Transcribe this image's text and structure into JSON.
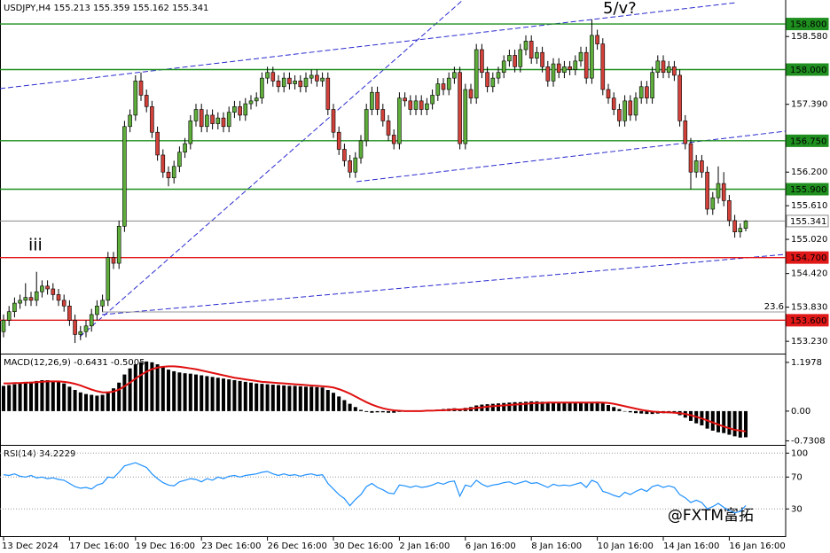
{
  "chart_data": [
    {
      "type": "candlestick",
      "title": "USDJPY,H4  155.213 155.359 155.162 155.341",
      "categories": [
        "13 Dec 2024",
        null,
        null,
        null,
        null,
        null,
        null,
        null,
        null,
        null,
        null,
        null,
        "17 Dec 16:00",
        null,
        null,
        null,
        null,
        null,
        null,
        null,
        null,
        null,
        null,
        null,
        "19 Dec 16:00",
        null,
        null,
        null,
        null,
        null,
        null,
        null,
        null,
        null,
        null,
        null,
        "23 Dec 16:00",
        null,
        null,
        null,
        null,
        null,
        null,
        null,
        null,
        null,
        null,
        null,
        "26 Dec 16:00",
        null,
        null,
        null,
        null,
        null,
        null,
        null,
        null,
        null,
        null,
        null,
        "30 Dec 16:00",
        null,
        null,
        null,
        null,
        null,
        null,
        null,
        null,
        null,
        null,
        null,
        "2 Jan 16:00",
        null,
        null,
        null,
        null,
        null,
        null,
        null,
        null,
        null,
        null,
        null,
        "6 Jan 16:00",
        null,
        null,
        null,
        null,
        null,
        null,
        null,
        null,
        null,
        null,
        null,
        "8 Jan 16:00",
        null,
        null,
        null,
        null,
        null,
        null,
        null,
        null,
        null,
        null,
        null,
        "10 Jan 16:00",
        null,
        null,
        null,
        null,
        null,
        null,
        null,
        null,
        null,
        null,
        null,
        "14 Jan 16:00",
        null,
        null,
        null,
        null,
        null,
        null,
        null,
        null,
        null,
        null,
        null,
        "16 Jan 16:00",
        null,
        null,
        null
      ],
      "open": [
        153.4,
        153.6,
        153.75,
        153.9,
        153.95,
        154.0,
        153.95,
        154.1,
        154.2,
        154.15,
        154.05,
        153.95,
        153.85,
        153.6,
        153.35,
        153.4,
        153.5,
        153.7,
        153.85,
        153.95,
        154.7,
        154.6,
        155.25,
        157.0,
        157.2,
        157.8,
        157.55,
        157.35,
        156.9,
        156.5,
        156.2,
        156.1,
        156.3,
        156.55,
        156.7,
        157.1,
        157.3,
        157.0,
        157.2,
        157.05,
        157.15,
        157.0,
        157.25,
        157.35,
        157.2,
        157.4,
        157.45,
        157.5,
        157.85,
        157.95,
        157.8,
        157.7,
        157.85,
        157.75,
        157.8,
        157.7,
        157.85,
        157.9,
        157.8,
        157.85,
        157.3,
        156.9,
        156.6,
        156.4,
        156.2,
        156.45,
        156.75,
        157.3,
        157.6,
        157.3,
        157.1,
        156.85,
        156.7,
        157.5,
        157.45,
        157.3,
        157.45,
        157.3,
        157.4,
        157.55,
        157.75,
        157.65,
        157.85,
        157.95,
        156.7,
        157.65,
        157.5,
        158.35,
        157.95,
        157.7,
        157.85,
        157.95,
        158.15,
        158.25,
        158.05,
        158.35,
        158.5,
        158.2,
        158.3,
        158.05,
        157.8,
        158.1,
        157.95,
        158.05,
        158.0,
        158.15,
        158.3,
        157.85,
        158.6,
        158.45,
        157.65,
        157.5,
        157.3,
        157.1,
        157.45,
        157.2,
        157.5,
        157.7,
        157.5,
        157.95,
        158.15,
        157.95,
        158.05,
        157.9,
        157.1,
        156.7,
        156.2,
        156.4,
        156.2,
        155.55,
        155.75,
        156.0,
        155.7,
        155.35,
        155.15,
        155.213
      ],
      "high": [
        153.7,
        153.85,
        154.0,
        154.05,
        154.25,
        154.1,
        154.45,
        154.3,
        154.3,
        154.25,
        154.15,
        154.05,
        153.95,
        153.7,
        153.5,
        153.6,
        153.8,
        153.95,
        154.05,
        154.8,
        154.8,
        155.35,
        157.1,
        157.3,
        157.9,
        157.95,
        157.65,
        157.45,
        157.0,
        156.6,
        156.3,
        156.4,
        156.65,
        156.8,
        157.2,
        157.4,
        157.4,
        157.3,
        157.3,
        157.25,
        157.25,
        157.35,
        157.45,
        157.45,
        157.5,
        157.55,
        157.6,
        157.95,
        158.05,
        158.05,
        157.9,
        157.95,
        157.95,
        157.9,
        157.9,
        157.95,
        158.0,
        158.0,
        157.95,
        157.95,
        157.4,
        157.0,
        156.7,
        156.5,
        156.55,
        156.85,
        157.4,
        157.7,
        157.7,
        157.4,
        157.2,
        156.95,
        157.6,
        157.6,
        157.55,
        157.55,
        157.55,
        157.5,
        157.65,
        157.85,
        157.85,
        157.95,
        158.05,
        158.05,
        157.75,
        157.75,
        158.45,
        158.45,
        158.05,
        157.95,
        158.05,
        158.25,
        158.35,
        158.35,
        158.45,
        158.6,
        158.6,
        158.4,
        158.4,
        158.15,
        158.2,
        158.2,
        158.15,
        158.15,
        158.25,
        158.4,
        158.4,
        158.88,
        158.7,
        158.55,
        157.75,
        157.6,
        157.4,
        157.55,
        157.55,
        157.6,
        157.8,
        157.8,
        158.05,
        158.25,
        158.25,
        158.15,
        158.15,
        158.0,
        157.2,
        156.8,
        156.5,
        156.5,
        156.3,
        155.85,
        156.3,
        156.2,
        155.8,
        155.45,
        155.3,
        155.359
      ],
      "low": [
        153.3,
        153.5,
        153.65,
        153.8,
        153.85,
        153.85,
        153.85,
        154.0,
        154.05,
        153.95,
        153.85,
        153.75,
        153.5,
        153.2,
        153.25,
        153.3,
        153.4,
        153.6,
        153.75,
        153.85,
        154.5,
        154.5,
        155.15,
        156.9,
        157.1,
        157.45,
        157.25,
        156.8,
        156.4,
        156.1,
        155.95,
        156.0,
        156.2,
        156.45,
        156.6,
        157.0,
        156.9,
        156.9,
        156.95,
        156.95,
        156.9,
        156.9,
        157.15,
        157.1,
        157.1,
        157.3,
        157.35,
        157.4,
        157.75,
        157.7,
        157.6,
        157.6,
        157.65,
        157.65,
        157.6,
        157.6,
        157.75,
        157.7,
        157.7,
        157.2,
        156.8,
        156.5,
        156.3,
        156.1,
        156.1,
        156.35,
        156.65,
        157.2,
        157.2,
        157.0,
        156.75,
        156.6,
        156.6,
        157.35,
        157.2,
        157.2,
        157.2,
        157.2,
        157.3,
        157.45,
        157.55,
        157.55,
        157.75,
        156.6,
        156.6,
        157.4,
        157.4,
        157.85,
        157.6,
        157.6,
        157.75,
        157.85,
        158.05,
        157.95,
        157.95,
        158.25,
        158.1,
        158.1,
        157.95,
        157.7,
        157.7,
        157.85,
        157.85,
        157.9,
        157.9,
        158.05,
        157.75,
        157.75,
        158.35,
        157.55,
        157.4,
        157.2,
        157.0,
        157.0,
        157.1,
        157.1,
        157.4,
        157.4,
        157.4,
        157.85,
        157.85,
        157.85,
        157.8,
        157.0,
        156.6,
        155.9,
        156.1,
        156.1,
        155.45,
        155.45,
        155.65,
        155.6,
        155.25,
        155.05,
        155.05,
        155.162
      ],
      "close": [
        153.6,
        153.75,
        153.9,
        153.95,
        154.0,
        153.95,
        154.1,
        154.2,
        154.15,
        154.05,
        153.95,
        153.85,
        153.6,
        153.35,
        153.4,
        153.5,
        153.7,
        153.85,
        153.95,
        154.7,
        154.6,
        155.25,
        157.0,
        157.2,
        157.8,
        157.55,
        157.35,
        156.9,
        156.5,
        156.2,
        156.1,
        156.3,
        156.55,
        156.7,
        157.1,
        157.3,
        157.0,
        157.2,
        157.05,
        157.15,
        157.0,
        157.25,
        157.35,
        157.2,
        157.4,
        157.45,
        157.5,
        157.85,
        157.95,
        157.8,
        157.7,
        157.85,
        157.75,
        157.8,
        157.7,
        157.85,
        157.9,
        157.8,
        157.85,
        157.3,
        156.9,
        156.6,
        156.4,
        156.2,
        156.45,
        156.75,
        157.3,
        157.6,
        157.3,
        157.1,
        156.85,
        156.7,
        157.5,
        157.45,
        157.3,
        157.45,
        157.3,
        157.4,
        157.55,
        157.75,
        157.65,
        157.85,
        157.95,
        156.7,
        157.65,
        157.5,
        158.35,
        157.95,
        157.7,
        157.85,
        157.95,
        158.15,
        158.25,
        158.05,
        158.35,
        158.5,
        158.2,
        158.3,
        158.05,
        157.8,
        158.1,
        157.95,
        158.05,
        158.0,
        158.15,
        158.3,
        157.85,
        158.6,
        158.45,
        157.65,
        157.5,
        157.3,
        157.1,
        157.45,
        157.2,
        157.5,
        157.7,
        157.5,
        157.95,
        158.15,
        157.95,
        158.05,
        157.9,
        157.1,
        156.7,
        156.2,
        156.4,
        156.2,
        155.55,
        155.75,
        156.0,
        155.7,
        155.35,
        155.15,
        155.213,
        155.341
      ],
      "up_color": "#5fae3c",
      "down_color": "#d2413a",
      "ylim": [
        153.03,
        159.19
      ],
      "yticks": [
        {
          "value": 158.58,
          "label": "158.580"
        },
        {
          "value": 157.39,
          "label": "157.390"
        },
        {
          "value": 156.2,
          "label": "156.200"
        },
        {
          "value": 155.61,
          "label": "155.610"
        },
        {
          "value": 155.02,
          "label": "155.020"
        },
        {
          "value": 154.42,
          "label": "154.420"
        },
        {
          "value": 153.83,
          "label": "153.830"
        },
        {
          "value": 153.23,
          "label": "153.230"
        }
      ],
      "levels": [
        {
          "value": 158.8,
          "label": "158.800",
          "color": "#1f8f1f",
          "label_bg": "#1f8f1f",
          "label_fg": "#ffffff"
        },
        {
          "value": 158.0,
          "label": "158.000",
          "color": "#1f8f1f",
          "label_bg": "#1f8f1f",
          "label_fg": "#ffffff"
        },
        {
          "value": 156.75,
          "label": "156.750",
          "color": "#1f8f1f",
          "label_bg": "#1f8f1f",
          "label_fg": "#ffffff"
        },
        {
          "value": 155.9,
          "label": "155.900",
          "color": "#1f8f1f",
          "label_bg": "#1f8f1f",
          "label_fg": "#ffffff"
        },
        {
          "value": 155.341,
          "label": "155.341",
          "color": "#8a8a8a",
          "label_bg": "#ffffff",
          "label_fg": "#000000"
        },
        {
          "value": 154.7,
          "label": "154.700",
          "color": "#e01818",
          "label_bg": "#e01818",
          "label_fg": "#ffffff"
        },
        {
          "value": 153.6,
          "label": "153.600",
          "color": "#e01818",
          "label_bg": "#e01818",
          "label_fg": "#ffffff"
        }
      ],
      "annotations": [
        "5/v?",
        "iii",
        "23.6"
      ]
    },
    {
      "type": "macd",
      "title": "MACD(12,26,9) -0.6431 -0.5005",
      "histogram": [
        0.62,
        0.64,
        0.66,
        0.68,
        0.7,
        0.72,
        0.74,
        0.76,
        0.76,
        0.75,
        0.72,
        0.68,
        0.6,
        0.52,
        0.46,
        0.42,
        0.4,
        0.38,
        0.4,
        0.48,
        0.56,
        0.7,
        0.9,
        1.05,
        1.15,
        1.2,
        1.22,
        1.2,
        1.15,
        1.08,
        1.02,
        0.98,
        0.95,
        0.93,
        0.92,
        0.9,
        0.88,
        0.86,
        0.84,
        0.82,
        0.8,
        0.78,
        0.76,
        0.74,
        0.72,
        0.7,
        0.68,
        0.67,
        0.66,
        0.65,
        0.64,
        0.63,
        0.62,
        0.62,
        0.61,
        0.6,
        0.6,
        0.59,
        0.58,
        0.52,
        0.45,
        0.36,
        0.27,
        0.18,
        0.1,
        0.03,
        -0.02,
        -0.04,
        -0.03,
        -0.03,
        -0.04,
        -0.04,
        -0.02,
        0.0,
        0.01,
        0.02,
        0.02,
        0.02,
        0.03,
        0.04,
        0.05,
        0.06,
        0.07,
        0.05,
        0.08,
        0.1,
        0.14,
        0.16,
        0.17,
        0.18,
        0.19,
        0.2,
        0.21,
        0.22,
        0.22,
        0.23,
        0.24,
        0.24,
        0.23,
        0.22,
        0.22,
        0.21,
        0.21,
        0.2,
        0.2,
        0.21,
        0.2,
        0.22,
        0.23,
        0.2,
        0.15,
        0.1,
        0.05,
        0.0,
        -0.03,
        -0.05,
        -0.06,
        -0.07,
        -0.07,
        -0.06,
        -0.05,
        -0.05,
        -0.05,
        -0.1,
        -0.16,
        -0.24,
        -0.3,
        -0.35,
        -0.43,
        -0.48,
        -0.52,
        -0.54,
        -0.58,
        -0.62,
        -0.65,
        -0.6431
      ],
      "signal": [
        0.68,
        0.68,
        0.69,
        0.69,
        0.7,
        0.7,
        0.71,
        0.72,
        0.73,
        0.73,
        0.73,
        0.72,
        0.7,
        0.67,
        0.63,
        0.58,
        0.53,
        0.49,
        0.46,
        0.46,
        0.48,
        0.53,
        0.61,
        0.7,
        0.8,
        0.89,
        0.97,
        1.03,
        1.07,
        1.09,
        1.1,
        1.1,
        1.09,
        1.07,
        1.05,
        1.03,
        1.0,
        0.97,
        0.94,
        0.91,
        0.88,
        0.85,
        0.82,
        0.8,
        0.78,
        0.76,
        0.74,
        0.72,
        0.71,
        0.7,
        0.69,
        0.68,
        0.67,
        0.66,
        0.65,
        0.64,
        0.63,
        0.62,
        0.61,
        0.6,
        0.58,
        0.54,
        0.49,
        0.43,
        0.36,
        0.29,
        0.22,
        0.16,
        0.11,
        0.07,
        0.04,
        0.02,
        0.01,
        0.0,
        0.0,
        0.0,
        0.0,
        0.01,
        0.01,
        0.02,
        0.02,
        0.03,
        0.04,
        0.04,
        0.05,
        0.06,
        0.08,
        0.09,
        0.11,
        0.12,
        0.13,
        0.14,
        0.15,
        0.16,
        0.17,
        0.18,
        0.19,
        0.2,
        0.2,
        0.21,
        0.21,
        0.21,
        0.21,
        0.21,
        0.21,
        0.21,
        0.21,
        0.21,
        0.21,
        0.21,
        0.2,
        0.18,
        0.15,
        0.12,
        0.09,
        0.06,
        0.03,
        0.01,
        -0.01,
        -0.02,
        -0.03,
        -0.03,
        -0.04,
        -0.05,
        -0.07,
        -0.1,
        -0.14,
        -0.18,
        -0.23,
        -0.28,
        -0.33,
        -0.38,
        -0.42,
        -0.46,
        -0.48,
        -0.5005
      ],
      "histogram_color": "#000000",
      "signal_color": "#e01010",
      "ylim": [
        -0.83,
        1.37
      ],
      "yticks": [
        1.1978,
        {
          "value": 0,
          "label": "0.00"
        },
        -0.7308
      ]
    },
    {
      "type": "line",
      "title": "RSI(14) 34.2229",
      "values": [
        73,
        72,
        74,
        71,
        70,
        72,
        69,
        70,
        68,
        69,
        67,
        66,
        62,
        58,
        56,
        57,
        55,
        60,
        62,
        70,
        69,
        76,
        84,
        86,
        88,
        85,
        82,
        74,
        68,
        63,
        60,
        59,
        64,
        66,
        68,
        67,
        64,
        68,
        66,
        70,
        68,
        71,
        72,
        70,
        72,
        73,
        74,
        76,
        77,
        74,
        72,
        74,
        72,
        73,
        71,
        73,
        74,
        72,
        73,
        62,
        55,
        48,
        43,
        34,
        42,
        48,
        58,
        62,
        57,
        54,
        50,
        49,
        60,
        59,
        57,
        59,
        57,
        58,
        60,
        63,
        61,
        64,
        65,
        46,
        60,
        58,
        66,
        61,
        58,
        60,
        61,
        63,
        64,
        61,
        63,
        65,
        62,
        63,
        60,
        57,
        61,
        59,
        60,
        59,
        61,
        63,
        57,
        66,
        63,
        52,
        50,
        47,
        45,
        51,
        48,
        52,
        55,
        52,
        58,
        60,
        57,
        59,
        57,
        48,
        44,
        38,
        41,
        38,
        30,
        33,
        37,
        32,
        28,
        25,
        27,
        34.2229
      ],
      "color": "#1e90ff",
      "ylim": [
        -3,
        107
      ],
      "yticks": [
        100,
        70,
        30
      ],
      "grid": true
    },
    {
      "watermark": "@FXTM富拓"
    }
  ]
}
